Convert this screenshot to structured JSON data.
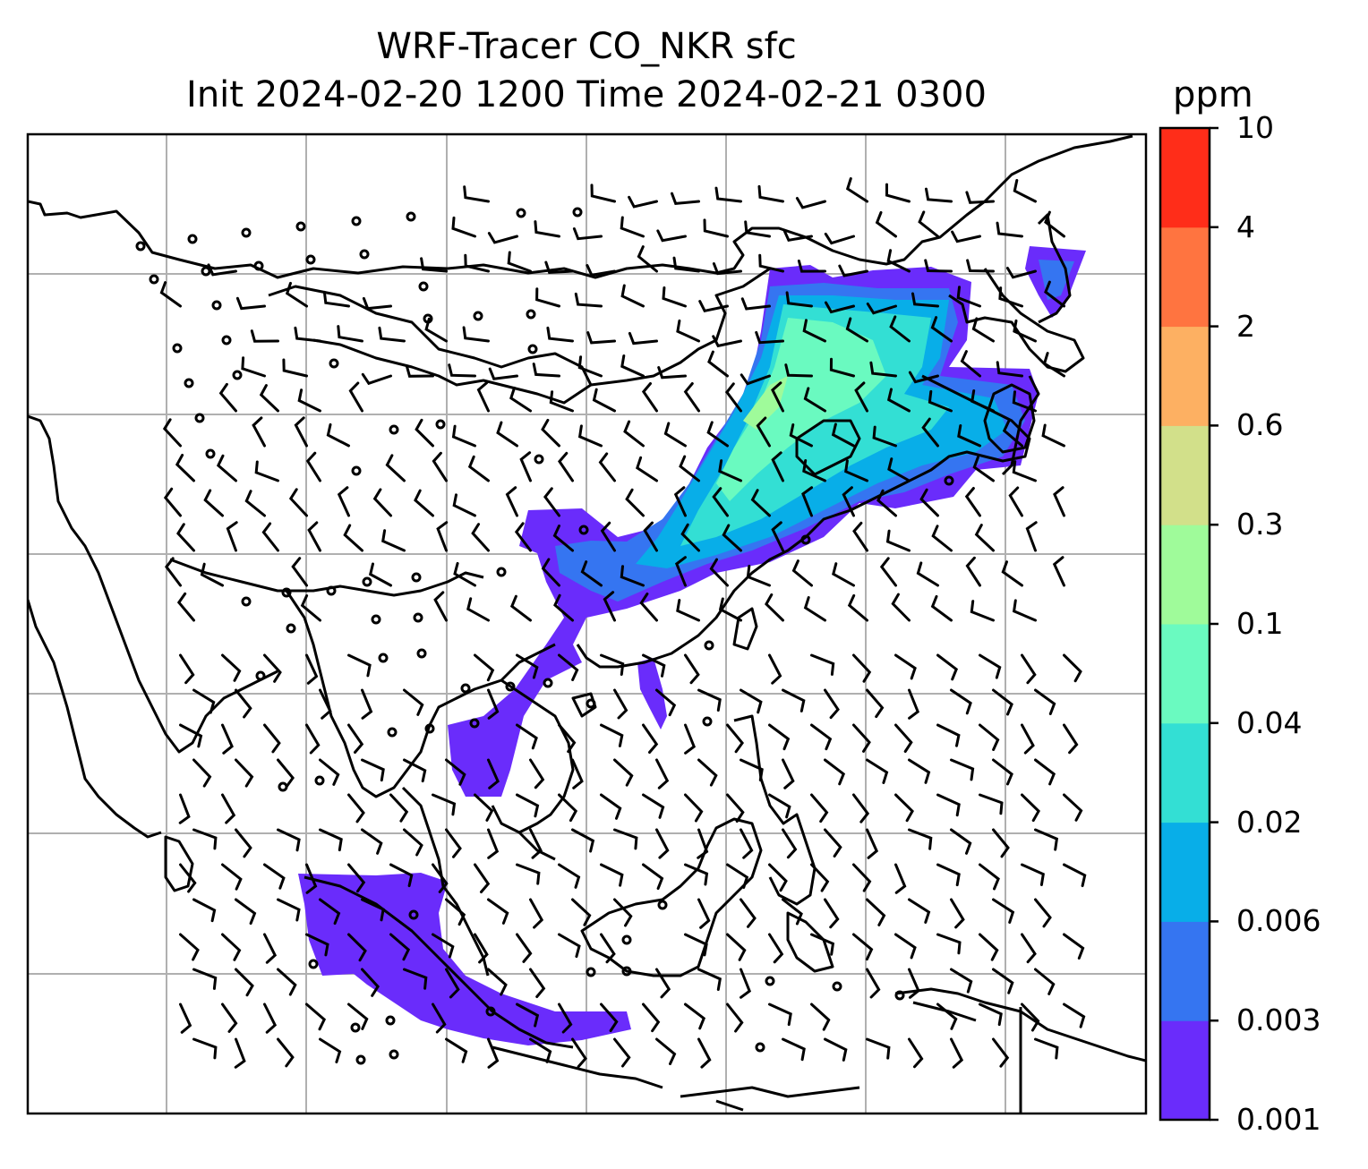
{
  "figure": {
    "title_line1": "WRF-Tracer CO_NKR sfc",
    "title_line2": "Init 2024-02-20 1200 Time 2024-02-21 0300"
  },
  "colorbar": {
    "unit": "ppm",
    "levels": [
      "0.001",
      "0.003",
      "0.006",
      "0.02",
      "0.04",
      "0.1",
      "0.3",
      "0.6",
      "2",
      "4",
      "10"
    ],
    "colors": [
      "#6a2cfb",
      "#3575f1",
      "#08aee8",
      "#33dfd4",
      "#6afac0",
      "#9ffb9a",
      "#d2e08a",
      "#fdb062",
      "#ff7440",
      "#ff2d19"
    ]
  },
  "map": {
    "gridlines": "on",
    "plume_colors": {
      "outer": "#6a2cfb",
      "low": "#3575f1",
      "mid": "#08aee8",
      "high": "#33dfd4",
      "peak": "#6afac0",
      "max": "#9ffb9a"
    },
    "coast_color": "#000000",
    "grid_color": "#b0b0b0"
  }
}
